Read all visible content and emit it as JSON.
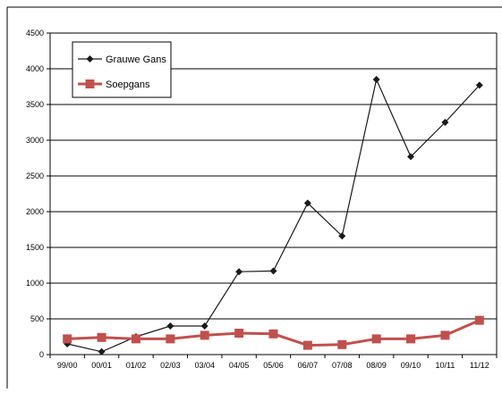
{
  "chart_data": {
    "type": "line",
    "categories": [
      "99/00",
      "00/01",
      "01/02",
      "02/03",
      "03/04",
      "04/05",
      "05/06",
      "06/07",
      "07/08",
      "08/09",
      "09/10",
      "10/11",
      "11/12"
    ],
    "series": [
      {
        "name": "Grauwe Gans",
        "values": [
          150,
          40,
          250,
          400,
          400,
          1160,
          1170,
          2120,
          1660,
          3850,
          2770,
          3250,
          3770
        ],
        "color": "#1a1a1a",
        "marker": "diamond"
      },
      {
        "name": "Soepgans",
        "values": [
          220,
          240,
          220,
          220,
          270,
          300,
          290,
          130,
          140,
          220,
          220,
          270,
          480
        ],
        "color": "#c0504d",
        "marker": "square"
      }
    ],
    "title": "",
    "xlabel": "",
    "ylabel": "",
    "ylim": [
      0,
      4500
    ],
    "yticks": [
      0,
      500,
      1000,
      1500,
      2000,
      2500,
      3000,
      3500,
      4000,
      4500
    ],
    "grid": true,
    "legend_position": "top-left"
  }
}
